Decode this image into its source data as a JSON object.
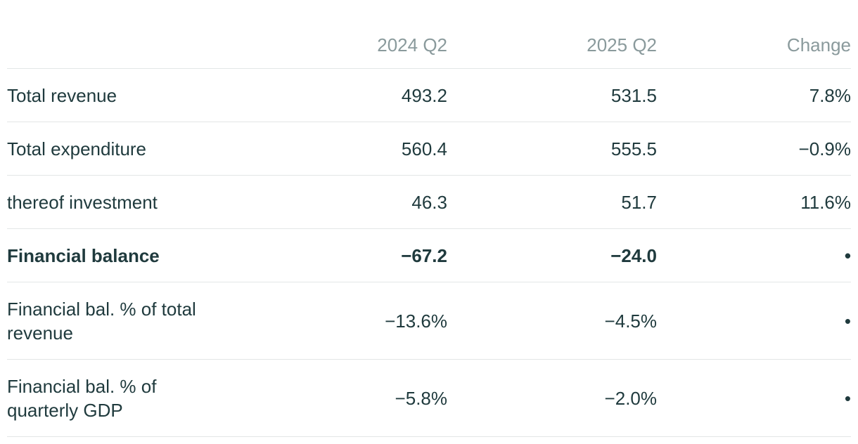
{
  "table": {
    "columns": [
      "",
      "2024 Q2",
      "2025 Q2",
      "Change"
    ],
    "rows": [
      {
        "label": "Total revenue",
        "q2_2024": "493.2",
        "q2_2025": "531.5",
        "change": "7.8%"
      },
      {
        "label": "Total expenditure",
        "q2_2024": "560.4",
        "q2_2025": "555.5",
        "change": "−0.9%"
      },
      {
        "label": "thereof investment",
        "q2_2024": "46.3",
        "q2_2025": "51.7",
        "change": "11.6%"
      },
      {
        "label": "Financial balance",
        "q2_2024": "−67.2",
        "q2_2025": "−24.0",
        "change": "•",
        "bold": true
      },
      {
        "label": "Financial bal. % of total revenue",
        "q2_2024": "−13.6%",
        "q2_2025": "−4.5%",
        "change": "•"
      },
      {
        "label": "Financial bal. % of quarterly GDP",
        "q2_2024": "−5.8%",
        "q2_2025": "−2.0%",
        "change": "•"
      }
    ]
  },
  "colors": {
    "text": "#1f3a3d",
    "header_text": "#8a9a9c",
    "divider": "#e3e6e6"
  }
}
